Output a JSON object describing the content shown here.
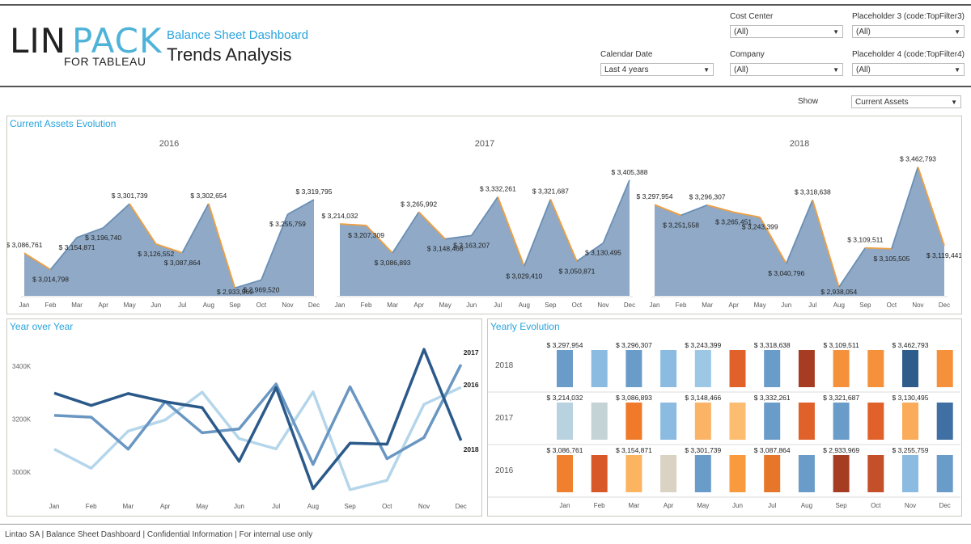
{
  "header": {
    "logo_main": "LIN",
    "logo_accent": "PACK",
    "logo_sub": "FOR TABLEAU",
    "subtitle": "Balance Sheet Dashboard",
    "title": "Trends Analysis"
  },
  "filters": {
    "calendar_date": {
      "label": "Calendar Date",
      "value": "Last 4 years"
    },
    "cost_center": {
      "label": "Cost Center",
      "value": "(All)"
    },
    "company": {
      "label": "Company",
      "value": "(All)"
    },
    "placeholder3": {
      "label": "Placeholder 3 (code:TopFilter3)",
      "value": "(All)"
    },
    "placeholder4": {
      "label": "Placeholder 4 (code:TopFilter4)",
      "value": "(All)"
    },
    "show": {
      "label": "Show",
      "value": "Current Assets"
    }
  },
  "panels": {
    "current_assets": "Current Assets Evolution",
    "year_over_year": "Year over Year",
    "yearly_evolution": "Yearly Evolution"
  },
  "footer": "Lintao SA | Balance Sheet Dashboard | Confidential Information | For internal use only",
  "colors": {
    "accent": "#29a3dc",
    "area_fill": "#8fa9c6",
    "up_line": "#6a8fb5",
    "down_line": "#f0a040",
    "line_2016": "#b5d6ea",
    "line_2017": "#6a97c2",
    "line_2018": "#2b5a8a"
  },
  "chart_data": [
    {
      "type": "area",
      "title": "Current Assets Evolution",
      "months": [
        "Jan",
        "Feb",
        "Mar",
        "Apr",
        "May",
        "Jun",
        "Jul",
        "Aug",
        "Sep",
        "Oct",
        "Nov",
        "Dec"
      ],
      "series": [
        {
          "name": "2016",
          "values": [
            3086761,
            3014798,
            3154871,
            3196740,
            3301739,
            3126552,
            3087864,
            3302654,
            2933969,
            2969520,
            3255759,
            3319795
          ]
        },
        {
          "name": "2017",
          "values": [
            3214032,
            3207309,
            3086893,
            3265992,
            3148466,
            3163207,
            3332261,
            3029410,
            3321687,
            3050871,
            3130495,
            3405388
          ]
        },
        {
          "name": "2018",
          "values": [
            3297954,
            3251558,
            3296307,
            3265451,
            3243399,
            3040796,
            3318638,
            2938054,
            3109511,
            3105505,
            3462793,
            3119441
          ]
        }
      ],
      "labels": {
        "2016": [
          "$ 3,086,761",
          "$ 3,014,798",
          "$ 3,154,871",
          "$ 3,196,740",
          "$ 3,301,739",
          "$ 3,126,552",
          "$ 3,087,864",
          "$ 3,302,654",
          "$ 2,933,969",
          "$ 2,969,520",
          "$ 3,255,759",
          "$ 3,319,795"
        ],
        "2017": [
          "$ 3,214,032",
          "$ 3,207,309",
          "$ 3,086,893",
          "$ 3,265,992",
          "$ 3,148,466",
          "$ 3,163,207",
          "$ 3,332,261",
          "$ 3,029,410",
          "$ 3,321,687",
          "$ 3,050,871",
          "$ 3,130,495",
          "$ 3,405,388"
        ],
        "2018": [
          "$ 3,297,954",
          "$ 3,251,558",
          "$ 3,296,307",
          "$ 3,265,451",
          "$ 3,243,399",
          "$ 3,040,796",
          "$ 3,318,638",
          "$ 2,938,054",
          "$ 3,109,511",
          "$ 3,105,505",
          "$ 3,462,793",
          "$ 3,119,441"
        ]
      },
      "ylim": [
        2900000,
        3500000
      ]
    },
    {
      "type": "line",
      "title": "Year over Year",
      "categories": [
        "Jan",
        "Feb",
        "Mar",
        "Apr",
        "May",
        "Jun",
        "Jul",
        "Aug",
        "Sep",
        "Oct",
        "Nov",
        "Dec"
      ],
      "yticks": [
        "3400K",
        "3200K",
        "3000K"
      ],
      "ytick_values": [
        3400000,
        3200000,
        3000000
      ],
      "ylim": [
        2900000,
        3500000
      ],
      "series": [
        {
          "name": "2016",
          "values": [
            3086761,
            3014798,
            3154871,
            3196740,
            3301739,
            3126552,
            3087864,
            3302654,
            2933969,
            2969520,
            3255759,
            3319795
          ]
        },
        {
          "name": "2017",
          "values": [
            3214032,
            3207309,
            3086893,
            3265992,
            3148466,
            3163207,
            3332261,
            3029410,
            3321687,
            3050871,
            3130495,
            3405388
          ]
        },
        {
          "name": "2018",
          "values": [
            3297954,
            3251558,
            3296307,
            3265451,
            3243399,
            3040796,
            3318638,
            2938054,
            3109511,
            3105505,
            3462793,
            3119441
          ]
        }
      ]
    },
    {
      "type": "bar",
      "title": "Yearly Evolution",
      "categories": [
        "Jan",
        "Feb",
        "Mar",
        "Apr",
        "May",
        "Jun",
        "Jul",
        "Aug",
        "Sep",
        "Oct",
        "Nov",
        "Dec"
      ],
      "rows": [
        {
          "name": "2018",
          "colors": [
            "#6a9cc9",
            "#8bbbe0",
            "#6a9cc9",
            "#8bbbe0",
            "#9cc8e6",
            "#e0622a",
            "#6a9cc9",
            "#a63d22",
            "#f6913b",
            "#f6913b",
            "#2e5d8c",
            "#f6913b"
          ],
          "labels": [
            "$ 3,297,954",
            "",
            "$ 3,296,307",
            "",
            "$ 3,243,399",
            "",
            "$ 3,318,638",
            "",
            "$ 3,109,511",
            "",
            "$ 3,462,793",
            ""
          ]
        },
        {
          "name": "2017",
          "colors": [
            "#b8d2df",
            "#c4d3d6",
            "#f07a2a",
            "#8bbbe0",
            "#fbb466",
            "#fdbd70",
            "#6a9cc9",
            "#e0622a",
            "#6a9cc9",
            "#e0622a",
            "#fbac5a",
            "#3f6fa3"
          ],
          "labels": [
            "$ 3,214,032",
            "",
            "$ 3,086,893",
            "",
            "$ 3,148,466",
            "",
            "$ 3,332,261",
            "",
            "$ 3,321,687",
            "",
            "$ 3,130,495",
            ""
          ]
        },
        {
          "name": "2016",
          "colors": [
            "#f0802e",
            "#d9582a",
            "#fdb460",
            "#dad2c2",
            "#6a9cc9",
            "#f99a3f",
            "#e6772a",
            "#6a9cc9",
            "#a63d22",
            "#c4502a",
            "#8bbbe0",
            "#6a9cc9"
          ],
          "labels": [
            "$ 3,086,761",
            "",
            "$ 3,154,871",
            "",
            "$ 3,301,739",
            "",
            "$ 3,087,864",
            "",
            "$ 2,933,969",
            "",
            "$ 3,255,759",
            ""
          ]
        }
      ]
    }
  ]
}
